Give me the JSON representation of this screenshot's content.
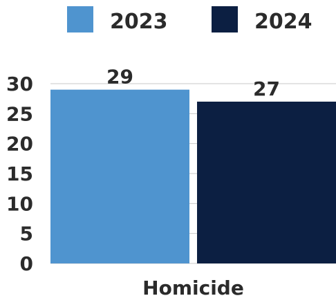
{
  "chart_data": {
    "type": "bar",
    "categories": [
      "Homicide"
    ],
    "series": [
      {
        "name": "2023",
        "values": [
          29
        ],
        "color": "#4f94cf"
      },
      {
        "name": "2024",
        "values": [
          27
        ],
        "color": "#0c1f42"
      }
    ],
    "ylim": [
      0,
      30
    ],
    "yticks": [
      0,
      5,
      10,
      15,
      20,
      25,
      30
    ],
    "grid": true,
    "legend": "top-center",
    "data_labels": true
  }
}
